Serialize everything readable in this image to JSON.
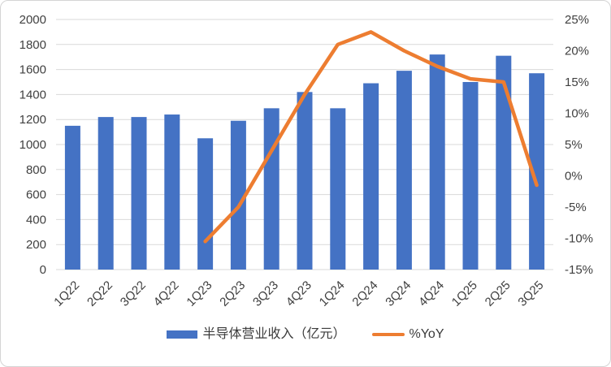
{
  "chart_data": {
    "type": "combo",
    "categories": [
      "1Q22",
      "2Q22",
      "3Q22",
      "4Q22",
      "1Q23",
      "2Q23",
      "3Q23",
      "4Q23",
      "1Q24",
      "2Q24",
      "3Q24",
      "4Q24",
      "1Q25",
      "2Q25",
      "3Q25"
    ],
    "series": [
      {
        "name": "半导体营业收入（亿元）",
        "type": "bar",
        "axis": "left",
        "values": [
          1150,
          1220,
          1220,
          1240,
          1050,
          1190,
          1290,
          1420,
          1290,
          1490,
          1590,
          1720,
          1500,
          1710,
          1570
        ]
      },
      {
        "name": "%YoY",
        "type": "line",
        "axis": "right",
        "values": [
          null,
          null,
          null,
          null,
          -10.5,
          -5,
          4,
          13,
          21,
          23,
          20,
          17.5,
          15.5,
          15,
          -1.5
        ]
      }
    ],
    "left_axis": {
      "min": 0,
      "max": 2000,
      "step": 200,
      "tick_labels": [
        "0",
        "200",
        "400",
        "600",
        "800",
        "1000",
        "1200",
        "1400",
        "1600",
        "1800",
        "2000"
      ]
    },
    "right_axis": {
      "min": -15,
      "max": 25,
      "step": 5,
      "tick_labels": [
        "-15%",
        "-10%",
        "-5%",
        "0%",
        "5%",
        "10%",
        "15%",
        "20%",
        "25%"
      ]
    },
    "grid": "horizontal",
    "legend_position": "bottom",
    "x_label_rotation": -45
  },
  "colors": {
    "bar": "#4472C4",
    "line": "#ED7D31",
    "grid": "#D9D9D9",
    "text": "#404040",
    "border": "#D4D4D4",
    "background": "#FFFFFF"
  }
}
